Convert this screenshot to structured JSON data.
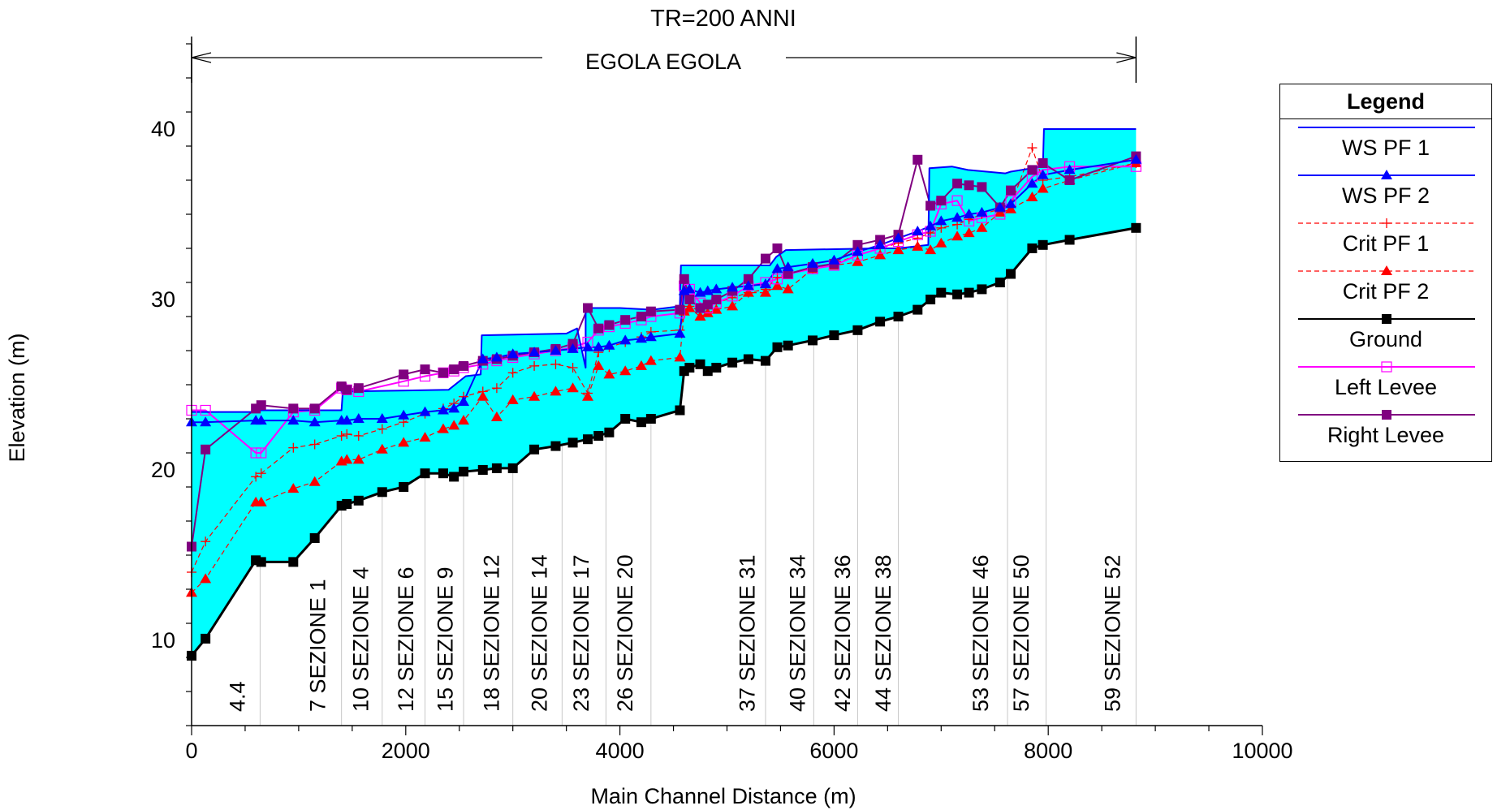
{
  "chart_data": {
    "type": "line",
    "title": "TR=200 ANNI",
    "reach_label": "EGOLA EGOLA",
    "xlabel": "Main Channel Distance (m)",
    "ylabel": "Elevation (m)",
    "xlim": [
      0,
      10000
    ],
    "ylim": [
      5,
      45
    ],
    "xticks": [
      0,
      2000,
      4000,
      6000,
      8000,
      10000
    ],
    "yticks": [
      10,
      20,
      30,
      40
    ],
    "grid": false,
    "legend": {
      "title": "Legend",
      "placement": "right",
      "items": [
        {
          "label": "WS  PF 1",
          "color": "#0000ff",
          "marker": "none",
          "dash": false
        },
        {
          "label": "WS  PF 2",
          "color": "#0000ff",
          "marker": "triangle",
          "dash": false
        },
        {
          "label": "Crit  PF 1",
          "color": "#ff0000",
          "marker": "plus",
          "dash": true
        },
        {
          "label": "Crit  PF 2",
          "color": "#ff0000",
          "marker": "triangle",
          "dash": true
        },
        {
          "label": "Ground",
          "color": "#000000",
          "marker": "square",
          "dash": false
        },
        {
          "label": "Left Levee",
          "color": "#ff00ff",
          "marker": "open-square",
          "dash": false
        },
        {
          "label": "Right Levee",
          "color": "#800080",
          "marker": "square",
          "dash": false
        }
      ]
    },
    "section_labels": [
      {
        "x": 430,
        "text": "4.4"
      },
      {
        "x": 1180,
        "text": "7 SEZIONE 1"
      },
      {
        "x": 1580,
        "text": "10 SEZIONE 4"
      },
      {
        "x": 2000,
        "text": "12 SEZIONE 6"
      },
      {
        "x": 2370,
        "text": "15 SEZIONE 9"
      },
      {
        "x": 2800,
        "text": "18 SEZIONE 12"
      },
      {
        "x": 3250,
        "text": "20 SEZIONE 14"
      },
      {
        "x": 3640,
        "text": "23 SEZIONE 17"
      },
      {
        "x": 4050,
        "text": "26 SEZIONE 20"
      },
      {
        "x": 5190,
        "text": "37 SEZIONE 31"
      },
      {
        "x": 5660,
        "text": "40 SEZIONE 34"
      },
      {
        "x": 6080,
        "text": "42 SEZIONE 36"
      },
      {
        "x": 6460,
        "text": "44 SEZIONE 38"
      },
      {
        "x": 7370,
        "text": "53 SEZIONE 46"
      },
      {
        "x": 7750,
        "text": "57 SEZIONE 50"
      },
      {
        "x": 8600,
        "text": "59 SEZIONE 52"
      }
    ],
    "section_stations": [
      640,
      1400,
      1780,
      2180,
      2540,
      3000,
      3460,
      3870,
      4290,
      5360,
      5810,
      6220,
      6600,
      7620,
      7980,
      8820
    ],
    "series": [
      {
        "name": "Ground",
        "color": "#000000",
        "x": [
          0,
          130,
          600,
          650,
          950,
          1150,
          1400,
          1450,
          1560,
          1780,
          1980,
          2180,
          2350,
          2450,
          2540,
          2720,
          2850,
          3000,
          3200,
          3400,
          3560,
          3700,
          3800,
          3900,
          4050,
          4200,
          4290,
          4560,
          4600,
          4650,
          4750,
          4820,
          4900,
          5050,
          5200,
          5360,
          5470,
          5570,
          5800,
          6000,
          6220,
          6430,
          6600,
          6780,
          6900,
          7000,
          7150,
          7260,
          7380,
          7550,
          7650,
          7850,
          7950,
          8200,
          8820
        ],
        "y": [
          9.1,
          10.1,
          14.7,
          14.6,
          14.6,
          16.0,
          17.9,
          18.0,
          18.2,
          18.7,
          19.0,
          19.8,
          19.8,
          19.6,
          19.9,
          20.0,
          20.1,
          20.1,
          21.2,
          21.4,
          21.6,
          21.8,
          22.0,
          22.2,
          23.0,
          22.8,
          23.0,
          23.5,
          25.8,
          26.0,
          26.2,
          25.8,
          26.0,
          26.3,
          26.5,
          26.4,
          27.2,
          27.3,
          27.6,
          27.9,
          28.2,
          28.7,
          29.0,
          29.4,
          30.0,
          30.4,
          30.3,
          30.4,
          30.6,
          31.0,
          31.5,
          33.0,
          33.2,
          33.5,
          34.2
        ]
      },
      {
        "name": "WS  PF 1",
        "color": "#0000ff",
        "x": [
          0,
          600,
          650,
          1400,
          1410,
          1400,
          2400,
          2560,
          2700,
          2710,
          3500,
          3600,
          3680,
          3680,
          4000,
          4300,
          4560,
          4570,
          5400,
          5460,
          5550,
          6400,
          6600,
          6880,
          6890,
          7100,
          7250,
          7600,
          7650,
          7950,
          7960,
          8820
        ],
        "y": [
          23.4,
          23.4,
          23.5,
          23.5,
          24.4,
          24.6,
          24.7,
          25.5,
          25.6,
          27.9,
          28.0,
          28.3,
          26.0,
          29.5,
          29.5,
          29.4,
          29.6,
          32.0,
          32.0,
          32.5,
          32.9,
          33.0,
          33.0,
          33.2,
          37.7,
          37.8,
          37.6,
          37.4,
          37.5,
          37.8,
          40.0,
          40.0
        ]
      },
      {
        "name": "WS  PF 2",
        "color": "#0000ff",
        "x": [
          0,
          130,
          600,
          650,
          950,
          1150,
          1400,
          1450,
          1560,
          1780,
          1980,
          2180,
          2350,
          2450,
          2540,
          2720,
          2850,
          3000,
          3200,
          3400,
          3560,
          3700,
          3800,
          3900,
          4050,
          4200,
          4290,
          4560,
          4600,
          4650,
          4750,
          4820,
          4900,
          5050,
          5200,
          5360,
          5470,
          5570,
          5800,
          6000,
          6220,
          6430,
          6600,
          6780,
          6900,
          7000,
          7150,
          7260,
          7380,
          7550,
          7650,
          7850,
          7950,
          8200,
          8820
        ],
        "y": [
          22.8,
          22.8,
          22.9,
          22.9,
          22.9,
          22.8,
          22.9,
          22.9,
          23.0,
          23.0,
          23.2,
          23.4,
          23.5,
          23.6,
          24.0,
          26.5,
          26.6,
          26.8,
          26.9,
          27.0,
          27.1,
          27.2,
          27.2,
          27.3,
          27.6,
          27.7,
          27.8,
          28.0,
          30.5,
          30.6,
          30.4,
          30.5,
          30.6,
          30.7,
          30.8,
          30.9,
          31.8,
          31.9,
          32.1,
          32.3,
          32.8,
          33.2,
          33.6,
          34.0,
          34.3,
          34.6,
          34.8,
          35.0,
          35.1,
          35.4,
          35.6,
          36.8,
          37.3,
          37.6,
          38.2
        ]
      },
      {
        "name": "Crit  PF 1",
        "color": "#ff0000",
        "x": [
          0,
          130,
          600,
          650,
          950,
          1150,
          1400,
          1450,
          1560,
          1780,
          1980,
          2180,
          2350,
          2450,
          2540,
          2720,
          2850,
          3000,
          3200,
          3400,
          3560,
          3700,
          3800,
          3900,
          4050,
          4200,
          4290,
          4560,
          4600,
          4650,
          4750,
          4820,
          4900,
          5050,
          5200,
          5360,
          5470,
          5570,
          5800,
          6000,
          6220,
          6430,
          6600,
          6780,
          6900,
          7000,
          7150,
          7260,
          7380,
          7550,
          7650,
          7850,
          7950,
          8200,
          8820
        ],
        "y": [
          14.0,
          15.8,
          19.6,
          19.8,
          21.3,
          21.5,
          22.0,
          22.1,
          22.0,
          22.4,
          22.8,
          23.3,
          23.6,
          23.9,
          24.3,
          24.6,
          24.8,
          25.7,
          26.1,
          26.2,
          26.0,
          24.5,
          26.9,
          27.2,
          27.5,
          27.8,
          28.1,
          28.2,
          29.2,
          29.6,
          29.3,
          29.5,
          29.8,
          30.1,
          30.4,
          30.6,
          31.3,
          31.5,
          31.8,
          32.1,
          32.6,
          33.0,
          33.3,
          33.6,
          33.9,
          34.2,
          34.4,
          34.7,
          35.0,
          35.3,
          35.5,
          38.9,
          37.0,
          37.2,
          38.0
        ]
      },
      {
        "name": "Crit  PF 2",
        "color": "#ff0000",
        "x": [
          0,
          130,
          600,
          650,
          950,
          1150,
          1400,
          1450,
          1560,
          1780,
          1980,
          2180,
          2350,
          2450,
          2540,
          2720,
          2850,
          3000,
          3200,
          3400,
          3560,
          3700,
          3800,
          3900,
          4050,
          4200,
          4290,
          4560,
          4600,
          4650,
          4750,
          4820,
          4900,
          5050,
          5200,
          5360,
          5470,
          5570,
          5800,
          6000,
          6220,
          6430,
          6600,
          6780,
          6900,
          7000,
          7150,
          7260,
          7380,
          7550,
          7650,
          7850,
          7950,
          8200,
          8820
        ],
        "y": [
          12.8,
          13.6,
          18.1,
          18.1,
          18.9,
          19.3,
          20.5,
          20.6,
          20.6,
          21.2,
          21.6,
          21.9,
          22.4,
          22.6,
          22.9,
          24.3,
          23.1,
          24.1,
          24.3,
          24.6,
          24.8,
          24.3,
          26.1,
          25.6,
          25.8,
          26.1,
          26.4,
          26.6,
          29.3,
          29.5,
          29.0,
          29.2,
          29.4,
          29.6,
          30.4,
          30.4,
          30.8,
          30.6,
          31.8,
          32.0,
          32.2,
          32.6,
          32.9,
          33.1,
          32.9,
          33.3,
          33.7,
          33.9,
          34.2,
          35.1,
          35.3,
          36.0,
          36.5,
          37.0,
          38.0
        ]
      },
      {
        "name": "Left Levee",
        "color": "#ff00ff",
        "x": [
          0,
          130,
          600,
          650,
          950,
          1150,
          1400,
          1450,
          1560,
          1980,
          2180,
          2350,
          2450,
          2540,
          2720,
          2850,
          3000,
          3200,
          3400,
          3560,
          3700,
          3800,
          3900,
          4050,
          4200,
          4290,
          4560,
          4600,
          4650,
          4750,
          4820,
          4900,
          5050,
          5200,
          5360,
          5470,
          5570,
          5800,
          6000,
          6220,
          6430,
          6600,
          6780,
          6900,
          7000,
          7150,
          7260,
          7380,
          7550,
          7650,
          7850,
          7950,
          8200,
          8820
        ],
        "y": [
          23.5,
          23.5,
          21.0,
          21.0,
          23.4,
          23.5,
          24.8,
          24.7,
          24.6,
          25.2,
          25.5,
          25.7,
          25.8,
          26.0,
          26.2,
          26.4,
          26.6,
          26.8,
          27.0,
          27.2,
          27.5,
          28.2,
          28.4,
          28.6,
          28.8,
          29.0,
          29.2,
          30.8,
          30.6,
          29.8,
          29.5,
          29.8,
          30.2,
          30.8,
          31.0,
          31.2,
          31.5,
          31.8,
          32.0,
          32.6,
          33.0,
          33.4,
          33.8,
          34.0,
          35.6,
          35.8,
          34.6,
          34.8,
          35.0,
          35.8,
          37.2,
          37.6,
          37.8,
          37.8
        ]
      },
      {
        "name": "Right Levee",
        "color": "#800080",
        "x": [
          0,
          130,
          600,
          650,
          950,
          1150,
          1400,
          1450,
          1560,
          1980,
          2180,
          2350,
          2450,
          2540,
          2720,
          2850,
          3000,
          3200,
          3400,
          3560,
          3700,
          3800,
          3900,
          4050,
          4200,
          4290,
          4560,
          4600,
          4650,
          4750,
          4820,
          4900,
          5050,
          5200,
          5360,
          5470,
          5570,
          5800,
          6000,
          6220,
          6430,
          6600,
          6780,
          6900,
          7000,
          7150,
          7260,
          7380,
          7550,
          7650,
          7850,
          7950,
          8200,
          8820
        ],
        "y": [
          15.5,
          21.2,
          23.6,
          23.8,
          23.6,
          23.6,
          24.9,
          24.7,
          24.8,
          25.6,
          25.9,
          25.7,
          25.9,
          26.1,
          26.4,
          26.5,
          26.7,
          26.9,
          27.1,
          27.4,
          29.5,
          28.3,
          28.5,
          28.8,
          29.0,
          29.3,
          29.4,
          31.2,
          30.0,
          29.5,
          29.7,
          30.0,
          30.5,
          31.2,
          32.4,
          33.0,
          31.5,
          31.9,
          32.1,
          33.2,
          33.5,
          33.8,
          38.2,
          35.5,
          35.8,
          36.8,
          36.7,
          36.6,
          35.4,
          36.4,
          37.6,
          38.0,
          37.0,
          38.4
        ]
      }
    ]
  }
}
